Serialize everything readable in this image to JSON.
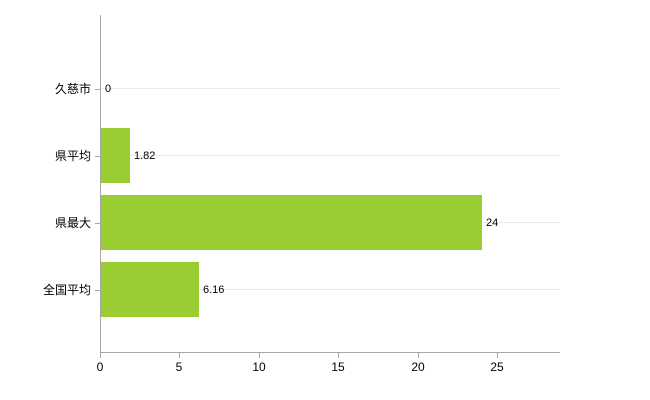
{
  "chart_data": {
    "type": "bar",
    "orientation": "horizontal",
    "title": "",
    "categories": [
      "久慈市",
      "県平均",
      "県最大",
      "全国平均"
    ],
    "values": [
      0,
      1.82,
      24,
      6.16
    ],
    "value_labels": [
      "0",
      "1.82",
      "24",
      "6.16"
    ],
    "xlim": [
      0,
      25
    ],
    "x_ticks": [
      0,
      5,
      10,
      15,
      20,
      25
    ],
    "x_tick_labels": [
      "0",
      "5",
      "10",
      "15",
      "20",
      "25"
    ],
    "grid": true,
    "legend": "none",
    "bar_color": "#9acd32",
    "axis_color": "#a6a6a6",
    "grid_color": "#ececec",
    "background_color": "#ffffff"
  }
}
